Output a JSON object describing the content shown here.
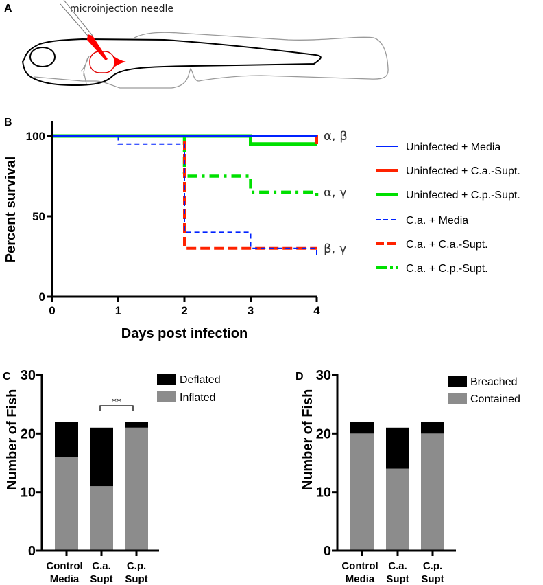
{
  "figure": {
    "panel_a": {
      "label": "A",
      "needle_label": "microinjection needle",
      "colors": {
        "injection": "#ff0000",
        "outline": "#000000",
        "fin": "#999999"
      }
    }
  },
  "chart_data": [
    {
      "panel": "B",
      "type": "line",
      "step": true,
      "xlabel": "Days post infection",
      "ylabel": "Percent survival",
      "xlim": [
        0,
        4
      ],
      "ylim": [
        0,
        100
      ],
      "xticks": [
        "0",
        "1",
        "2",
        "3",
        "4"
      ],
      "yticks": [
        "0",
        "50",
        "100"
      ],
      "legend_position": "right",
      "annotations": [
        {
          "text": "α, β",
          "at_y": 100
        },
        {
          "text": "α, γ",
          "at_y": 65
        },
        {
          "text": "β, γ",
          "at_y": 30
        }
      ],
      "series": [
        {
          "name": "Uninfected + Media",
          "color": "#0022ff",
          "style": "solid",
          "x": [
            0,
            4
          ],
          "y": [
            100,
            100
          ]
        },
        {
          "name": "Uninfected + C.a.-Supt.",
          "color": "#ff2200",
          "style": "solid",
          "x": [
            0,
            4,
            4
          ],
          "y": [
            100,
            100,
            95
          ]
        },
        {
          "name": "Uninfected + C.p.-Supt.",
          "color": "#00e000",
          "style": "solid",
          "x": [
            0,
            3,
            3,
            4
          ],
          "y": [
            100,
            100,
            95,
            95
          ]
        },
        {
          "name": "C.a. + Media",
          "color": "#0022ff",
          "style": "dashed",
          "x": [
            0,
            1,
            1,
            2,
            2,
            3,
            3,
            4,
            4
          ],
          "y": [
            100,
            100,
            95,
            95,
            40,
            40,
            30,
            30,
            25
          ]
        },
        {
          "name": "C.a. + C.a.-Supt.",
          "color": "#ff2200",
          "style": "dashed",
          "x": [
            0,
            2,
            2,
            4
          ],
          "y": [
            100,
            100,
            30,
            30
          ]
        },
        {
          "name": "C.a. + C.p.-Supt.",
          "color": "#00e000",
          "style": "dashdot",
          "x": [
            0,
            2,
            2,
            3,
            3,
            4,
            4
          ],
          "y": [
            100,
            100,
            75,
            75,
            65,
            65,
            60
          ]
        }
      ]
    },
    {
      "panel": "C",
      "type": "bar",
      "stacked": true,
      "ylabel": "Number of Fish",
      "ylim": [
        0,
        30
      ],
      "yticks": [
        "0",
        "10",
        "20",
        "30"
      ],
      "categories": [
        [
          "Control",
          "Media"
        ],
        [
          "C.a.",
          "Supt"
        ],
        [
          "C.p.",
          "Supt"
        ]
      ],
      "legend_position": "top-right",
      "significance": {
        "text": "**",
        "between": [
          1,
          2
        ]
      },
      "series": [
        {
          "name": "Inflated",
          "color": "#8c8c8c",
          "values": [
            16,
            11,
            21
          ]
        },
        {
          "name": "Deflated",
          "color": "#000000",
          "values": [
            6,
            10,
            1
          ]
        }
      ]
    },
    {
      "panel": "D",
      "type": "bar",
      "stacked": true,
      "ylabel": "Number of Fish",
      "ylim": [
        0,
        30
      ],
      "yticks": [
        "0",
        "10",
        "20",
        "30"
      ],
      "categories": [
        [
          "Control",
          "Media"
        ],
        [
          "C.a.",
          "Supt"
        ],
        [
          "C.p.",
          "Supt"
        ]
      ],
      "legend_position": "top-right",
      "series": [
        {
          "name": "Contained",
          "color": "#8c8c8c",
          "values": [
            20,
            14,
            20
          ]
        },
        {
          "name": "Breached",
          "color": "#000000",
          "values": [
            2,
            7,
            2
          ]
        }
      ]
    }
  ]
}
